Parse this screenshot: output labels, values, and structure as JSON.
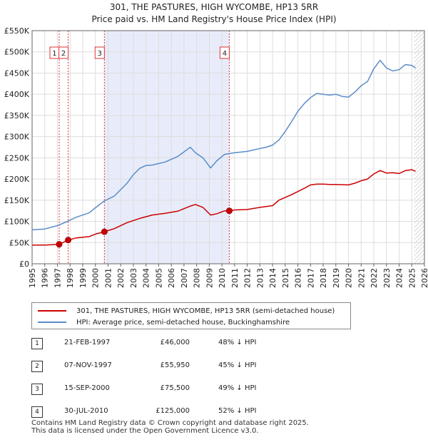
{
  "chart_data": {
    "type": "line",
    "title_line1": "301, THE PASTURES, HIGH WYCOMBE, HP13 5RR",
    "title_line2": "Price paid vs. HM Land Registry's House Price Index (HPI)",
    "xlim": [
      1995,
      2026
    ],
    "ylim": [
      0,
      550000
    ],
    "x_ticks": [
      "1995",
      "1996",
      "1997",
      "1998",
      "1999",
      "2000",
      "2001",
      "2002",
      "2003",
      "2004",
      "2005",
      "2006",
      "2007",
      "2008",
      "2009",
      "2010",
      "2011",
      "2012",
      "2013",
      "2014",
      "2015",
      "2016",
      "2017",
      "2018",
      "2019",
      "2020",
      "2021",
      "2022",
      "2023",
      "2024",
      "2025",
      "2026"
    ],
    "y_ticks": [
      {
        "value": 0,
        "label": "£0"
      },
      {
        "value": 50000,
        "label": "£50K"
      },
      {
        "value": 100000,
        "label": "£100K"
      },
      {
        "value": 150000,
        "label": "£150K"
      },
      {
        "value": 200000,
        "label": "£200K"
      },
      {
        "value": 250000,
        "label": "£250K"
      },
      {
        "value": 300000,
        "label": "£300K"
      },
      {
        "value": 350000,
        "label": "£350K"
      },
      {
        "value": 400000,
        "label": "£400K"
      },
      {
        "value": 450000,
        "label": "£450K"
      },
      {
        "value": 500000,
        "label": "£500K"
      },
      {
        "value": 550000,
        "label": "£550K"
      }
    ],
    "shaded_range": [
      2000.7,
      2010.58
    ],
    "hatched_from": 2025.2,
    "series": [
      {
        "name": "301, THE PASTURES, HIGH WYCOMBE, HP13 5RR (semi-detached house)",
        "color": "#cc0000",
        "x": [
          1995.0,
          1996.0,
          1997.14,
          1997.85,
          1998.5,
          1999.5,
          2000.0,
          2000.71,
          2001.5,
          2002.5,
          2003.5,
          2004.5,
          2005.5,
          2006.5,
          2007.5,
          2007.9,
          2008.5,
          2009.1,
          2009.6,
          2010.2,
          2010.58,
          2011.0,
          2012.0,
          2013.0,
          2014.0,
          2014.5,
          2015.5,
          2016.5,
          2017.0,
          2017.5,
          2018.0,
          2018.5,
          2019.0,
          2020.0,
          2020.5,
          2021.0,
          2021.5,
          2022.0,
          2022.5,
          2023.0,
          2023.5,
          2024.0,
          2024.5,
          2025.0,
          2025.3
        ],
        "values": [
          44000,
          44000,
          46000,
          55950,
          61000,
          64000,
          70000,
          75500,
          83000,
          97000,
          107000,
          115000,
          119000,
          124000,
          136000,
          140000,
          133000,
          115000,
          118000,
          125000,
          125000,
          127000,
          128000,
          133000,
          137000,
          150000,
          163000,
          178000,
          186000,
          188000,
          188000,
          187000,
          187000,
          186000,
          190000,
          196000,
          200000,
          212000,
          220000,
          214000,
          215000,
          213000,
          220000,
          222000,
          218000
        ]
      },
      {
        "name": "HPI: Average price, semi-detached house, Buckinghamshire",
        "color": "#5b8cc8",
        "x": [
          1995.0,
          1996.0,
          1997.0,
          1997.8,
          1998.5,
          1999.5,
          2000.0,
          2000.7,
          2001.5,
          2002.5,
          2003.0,
          2003.5,
          2004.0,
          2004.5,
          2005.5,
          2006.5,
          2007.5,
          2007.9,
          2008.5,
          2009.1,
          2009.6,
          2010.2,
          2010.6,
          2011.0,
          2012.0,
          2013.0,
          2013.5,
          2014.0,
          2014.5,
          2015.0,
          2015.5,
          2016.0,
          2016.5,
          2017.0,
          2017.5,
          2018.0,
          2018.5,
          2019.0,
          2019.5,
          2020.0,
          2020.5,
          2021.0,
          2021.5,
          2022.0,
          2022.5,
          2023.0,
          2023.5,
          2024.0,
          2024.5,
          2025.0,
          2025.3
        ],
        "values": [
          80000,
          82000,
          90000,
          100000,
          110000,
          120000,
          132000,
          148000,
          160000,
          190000,
          210000,
          225000,
          232000,
          233000,
          240000,
          253000,
          275000,
          262000,
          250000,
          226000,
          243000,
          258000,
          260000,
          262000,
          265000,
          272000,
          275000,
          280000,
          292000,
          312000,
          335000,
          360000,
          378000,
          392000,
          402000,
          400000,
          398000,
          400000,
          395000,
          393000,
          405000,
          420000,
          430000,
          460000,
          480000,
          462000,
          455000,
          458000,
          470000,
          468000,
          462000
        ]
      }
    ],
    "sales": [
      {
        "id": "1",
        "x": 1997.14,
        "value": 46000,
        "date": "21-FEB-1997",
        "price": "£46,000",
        "hpi": "48% ↓ HPI"
      },
      {
        "id": "2",
        "x": 1997.85,
        "value": 55950,
        "date": "07-NOV-1997",
        "price": "£55,950",
        "hpi": "45% ↓ HPI"
      },
      {
        "id": "3",
        "x": 2000.71,
        "value": 75500,
        "date": "15-SEP-2000",
        "price": "£75,500",
        "hpi": "49% ↓ HPI"
      },
      {
        "id": "4",
        "x": 2010.58,
        "value": 125000,
        "date": "30-JUL-2010",
        "price": "£125,000",
        "hpi": "52% ↓ HPI"
      }
    ]
  },
  "legend": {
    "property_label": "301, THE PASTURES, HIGH WYCOMBE, HP13 5RR (semi-detached house)",
    "hpi_label": "HPI: Average price, semi-detached house, Buckinghamshire",
    "property_color": "#cc0000",
    "hpi_color": "#5b8cc8"
  },
  "footer": {
    "line1": "Contains HM Land Registry data © Crown copyright and database right 2025.",
    "line2": "This data is licensed under the Open Government Licence v3.0."
  }
}
